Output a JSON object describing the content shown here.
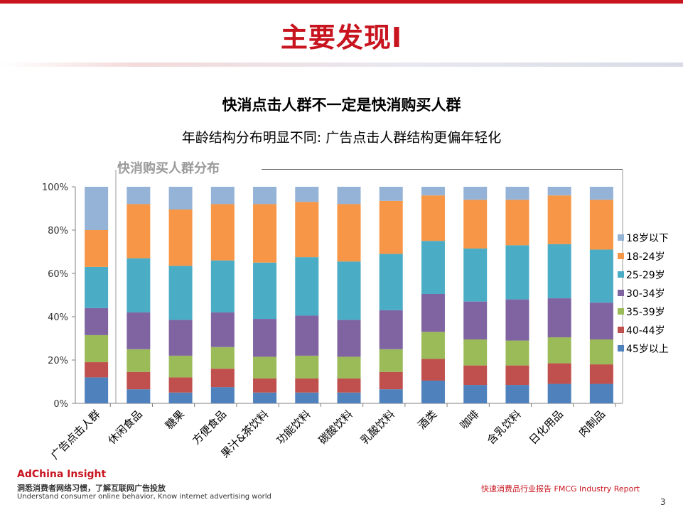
{
  "slide": {
    "title": "主要发现I",
    "headline": "快消点击人群不一定是快消购买人群",
    "subhead": "年龄结构分布明显不同: 广告点击人群结构更偏年轻化",
    "chart_label": "快消购买人群分布",
    "brand_title": "AdChina Insight",
    "brand_cn": "洞悉消费者网络习惯，了解互联网广告投放",
    "brand_en": "Understand consumer online behavior, Know internet advertising world",
    "report_label": "快速消费品行业报告   FMCG Industry Report",
    "page_number": "3"
  },
  "chart_data": {
    "type": "bar",
    "stacked": true,
    "percent": true,
    "categories": [
      "广告点击人群",
      "休闲食品",
      "糖果",
      "方便食品",
      "果汁&茶饮料",
      "功能饮料",
      "碳酸饮料",
      "乳酸饮料",
      "酒类",
      "咖啡",
      "含乳饮料",
      "日化用品",
      "肉制品"
    ],
    "y_ticks": [
      "0%",
      "20%",
      "40%",
      "60%",
      "80%",
      "100%"
    ],
    "ylim": [
      0,
      100
    ],
    "legend_position": "right",
    "series": [
      {
        "name": "45岁以上",
        "color": "#4f81bd",
        "values": [
          12,
          6.5,
          5,
          7.5,
          5,
          5,
          5,
          6.5,
          10.5,
          8.5,
          8.5,
          9,
          9
        ]
      },
      {
        "name": "40-44岁",
        "color": "#c0504d",
        "values": [
          7,
          8,
          7,
          8.5,
          6.5,
          6.5,
          6.5,
          8,
          10,
          9,
          9,
          9.5,
          9
        ]
      },
      {
        "name": "35-39岁",
        "color": "#9bbb59",
        "values": [
          12.5,
          10.5,
          10,
          10,
          10,
          10.5,
          10,
          10.5,
          12.5,
          12,
          11.5,
          12,
          11.5
        ]
      },
      {
        "name": "30-34岁",
        "color": "#8064a2",
        "values": [
          12.5,
          17,
          16.5,
          16,
          17.5,
          18.5,
          17,
          18,
          17.5,
          17.5,
          19,
          18,
          17
        ]
      },
      {
        "name": "25-29岁",
        "color": "#4bacc6",
        "values": [
          19,
          25,
          25,
          24,
          26,
          27,
          27,
          26,
          24.5,
          24.5,
          25,
          25,
          24.5
        ]
      },
      {
        "name": "18-24岁",
        "color": "#f79646",
        "values": [
          17,
          25,
          26,
          26,
          27,
          25.5,
          26.5,
          24.5,
          21,
          22.5,
          21,
          22.5,
          23
        ]
      },
      {
        "name": "18岁以下",
        "color": "#95b3d7",
        "values": [
          20,
          8,
          10.5,
          8,
          8,
          7,
          8,
          6.5,
          4,
          6,
          6,
          4,
          6
        ]
      }
    ]
  }
}
